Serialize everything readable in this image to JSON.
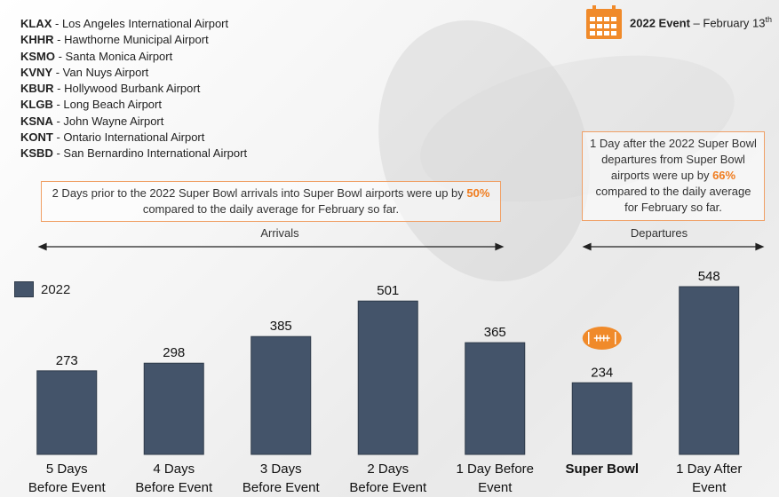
{
  "colors": {
    "bar": "#44546a",
    "accent": "#f07c1e",
    "note_border": "#f0a066"
  },
  "airports": [
    {
      "code": "KLAX",
      "name": "Los Angeles International Airport"
    },
    {
      "code": "KHHR",
      "name": "Hawthorne Municipal Airport"
    },
    {
      "code": "KSMO",
      "name": "Santa Monica Airport"
    },
    {
      "code": "KVNY",
      "name": "Van Nuys Airport"
    },
    {
      "code": "KBUR",
      "name": "Hollywood Burbank Airport"
    },
    {
      "code": "KLGB",
      "name": "Long Beach Airport"
    },
    {
      "code": "KSNA",
      "name": "John Wayne Airport"
    },
    {
      "code": "KONT",
      "name": "Ontario International Airport"
    },
    {
      "code": "KSBD",
      "name": "San Bernardino International Airport"
    }
  ],
  "event": {
    "icon": "calendar-icon",
    "year_label": "2022 Event",
    "date_text": " – February 13",
    "date_suffix": "th"
  },
  "arrivals_note": {
    "before": "2 Days prior to the 2022 Super Bowl arrivals into Super Bowl airports were up by ",
    "pct": "50%",
    "after": " compared to the daily average for February so far."
  },
  "departures_note": {
    "before": "1 Day after the 2022 Super Bowl departures from Super Bowl airports were up by ",
    "pct": "66%",
    "after": " compared to the daily average for February so far."
  },
  "ranges": {
    "arrivals": "Arrivals",
    "departures": "Departures"
  },
  "chart_data": {
    "type": "bar",
    "categories": [
      [
        "5 Days",
        "Before Event"
      ],
      [
        "4 Days",
        "Before Event"
      ],
      [
        "3 Days",
        "Before Event"
      ],
      [
        "2 Days",
        "Before Event"
      ],
      [
        "1 Day Before",
        "Event"
      ],
      [
        "Super Bowl"
      ],
      [
        "1 Day After",
        "Event"
      ]
    ],
    "series": [
      {
        "name": "2022",
        "values": [
          273,
          298,
          385,
          501,
          365,
          234,
          548
        ]
      }
    ],
    "highlight_category": 5,
    "highlight_icon": "football-icon",
    "ylim": [
      0,
      600
    ],
    "grid": false,
    "legend": "top-left"
  }
}
